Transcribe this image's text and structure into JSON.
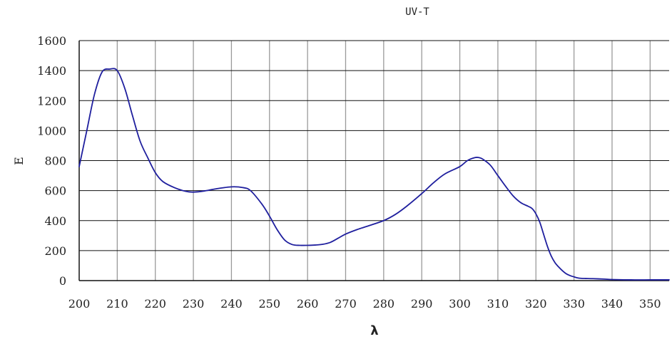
{
  "chart_data": {
    "type": "line",
    "title": "UV-T",
    "xlabel": "λ",
    "ylabel": "E",
    "xlim": [
      200,
      355
    ],
    "ylim": [
      0,
      1600
    ],
    "xticks": [
      200,
      210,
      220,
      230,
      240,
      250,
      260,
      270,
      280,
      290,
      300,
      310,
      320,
      330,
      340,
      350
    ],
    "yticks": [
      0,
      200,
      400,
      600,
      800,
      1000,
      1200,
      1400,
      1600
    ],
    "grid": true,
    "legend": "none",
    "series": [
      {
        "color": "#1f1f9e",
        "x": [
          200,
          202,
          204,
          206,
          208,
          210,
          212,
          214,
          216,
          218,
          220,
          222,
          225,
          228,
          230,
          233,
          236,
          240,
          243,
          245,
          248,
          250,
          252,
          254,
          256,
          258,
          260,
          262,
          264,
          266,
          268,
          270,
          273,
          276,
          280,
          283,
          286,
          290,
          293,
          296,
          300,
          302,
          304,
          305,
          306,
          308,
          310,
          312,
          314,
          316,
          318,
          319,
          320,
          321,
          322,
          323,
          324,
          325,
          326,
          327,
          328,
          329,
          330,
          331,
          332,
          333,
          335,
          338,
          340,
          345,
          350,
          355
        ],
        "y": [
          760,
          1000,
          1240,
          1390,
          1410,
          1400,
          1280,
          1100,
          930,
          820,
          720,
          660,
          620,
          595,
          590,
          598,
          612,
          625,
          620,
          600,
          510,
          430,
          340,
          270,
          240,
          235,
          235,
          237,
          242,
          255,
          282,
          310,
          340,
          365,
          400,
          440,
          495,
          580,
          650,
          710,
          760,
          800,
          820,
          820,
          810,
          770,
          700,
          630,
          565,
          520,
          495,
          480,
          445,
          390,
          310,
          230,
          165,
          120,
          90,
          65,
          45,
          33,
          25,
          18,
          15,
          14,
          13,
          10,
          7,
          5,
          5,
          5
        ]
      }
    ]
  }
}
